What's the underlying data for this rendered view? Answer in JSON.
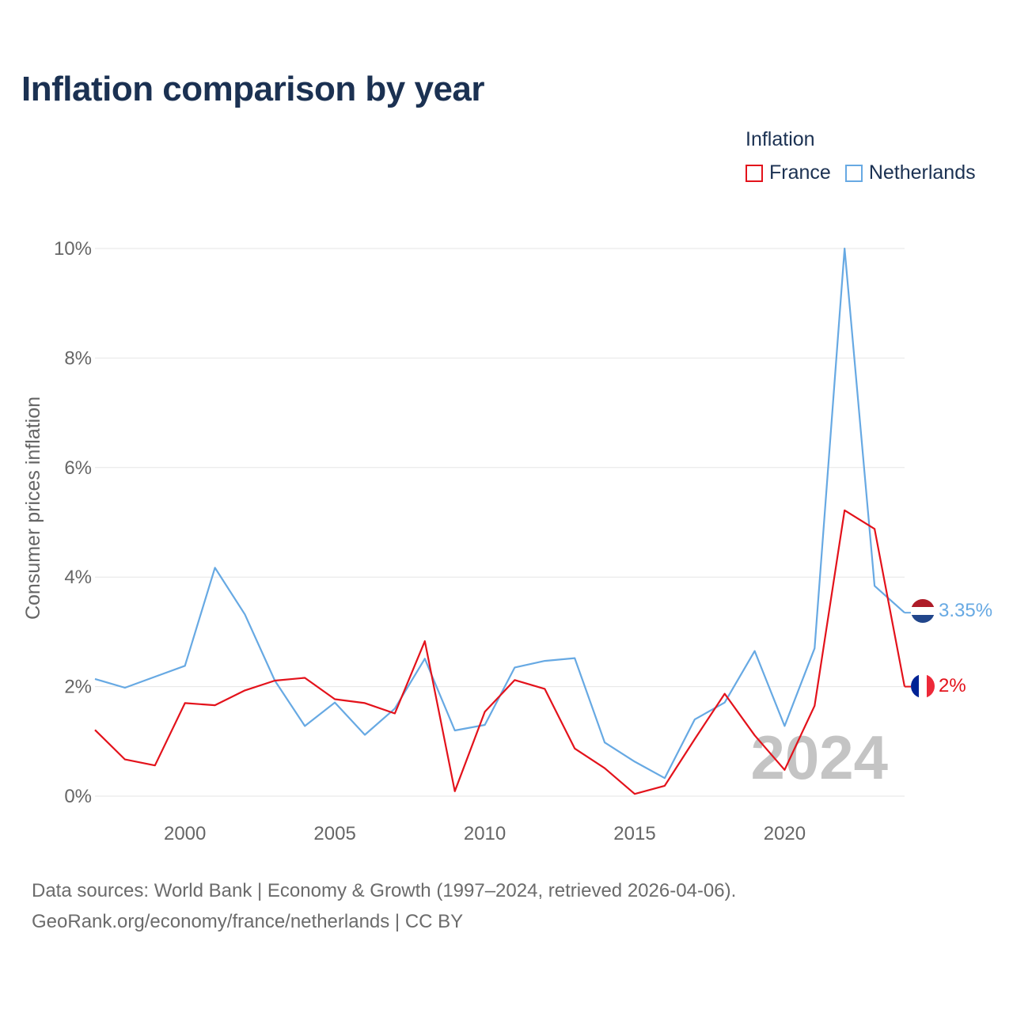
{
  "title": "Inflation comparison by year",
  "legend": {
    "title": "Inflation",
    "items": [
      {
        "label": "France",
        "color": "#e3121b"
      },
      {
        "label": "Netherlands",
        "color": "#67a9e3"
      }
    ]
  },
  "source": {
    "line1": "Data sources: World Bank | Economy & Growth (1997–2024, retrieved 2026-04-06).",
    "line2": "GeoRank.org/economy/france/netherlands | CC BY"
  },
  "chart_data": {
    "type": "line",
    "title": "Inflation comparison by year",
    "xlabel": "",
    "ylabel": "Consumer prices inflation",
    "xlim": [
      1997,
      2024
    ],
    "ylim": [
      0,
      10
    ],
    "x_ticks": [
      {
        "value": 2000,
        "label": "2000"
      },
      {
        "value": 2005,
        "label": "2005"
      },
      {
        "value": 2010,
        "label": "2010"
      },
      {
        "value": 2015,
        "label": "2015"
      },
      {
        "value": 2020,
        "label": "2020"
      }
    ],
    "y_ticks": [
      {
        "value": 0,
        "label": "0%"
      },
      {
        "value": 2,
        "label": "2%"
      },
      {
        "value": 4,
        "label": "4%"
      },
      {
        "value": 6,
        "label": "6%"
      },
      {
        "value": 8,
        "label": "8%"
      },
      {
        "value": 10,
        "label": "10%"
      }
    ],
    "grid": true,
    "watermark_year": "2024",
    "x": [
      1997,
      1998,
      1999,
      2000,
      2001,
      2002,
      2003,
      2004,
      2005,
      2006,
      2007,
      2008,
      2009,
      2010,
      2011,
      2012,
      2013,
      2014,
      2015,
      2016,
      2017,
      2018,
      2019,
      2020,
      2021,
      2022,
      2023,
      2024
    ],
    "series": [
      {
        "name": "France",
        "color": "#e3121b",
        "end_label": "2%",
        "values": [
          1.21,
          0.67,
          0.56,
          1.7,
          1.66,
          1.93,
          2.11,
          2.16,
          1.77,
          1.7,
          1.51,
          2.83,
          0.09,
          1.54,
          2.12,
          1.96,
          0.87,
          0.51,
          0.04,
          0.19,
          1.04,
          1.87,
          1.11,
          0.48,
          1.65,
          5.22,
          4.88,
          2.0
        ]
      },
      {
        "name": "Netherlands",
        "color": "#67a9e3",
        "end_label": "3.35%",
        "values": [
          2.14,
          1.98,
          2.18,
          2.38,
          4.17,
          3.32,
          2.11,
          1.28,
          1.71,
          1.12,
          1.6,
          2.51,
          1.2,
          1.3,
          2.35,
          2.47,
          2.52,
          0.98,
          0.63,
          0.33,
          1.4,
          1.71,
          2.65,
          1.28,
          2.7,
          10.0,
          3.84,
          3.35
        ]
      }
    ],
    "annotations": [
      {
        "series": "Netherlands",
        "label": "3.35%"
      },
      {
        "series": "France",
        "label": "2%"
      }
    ]
  }
}
